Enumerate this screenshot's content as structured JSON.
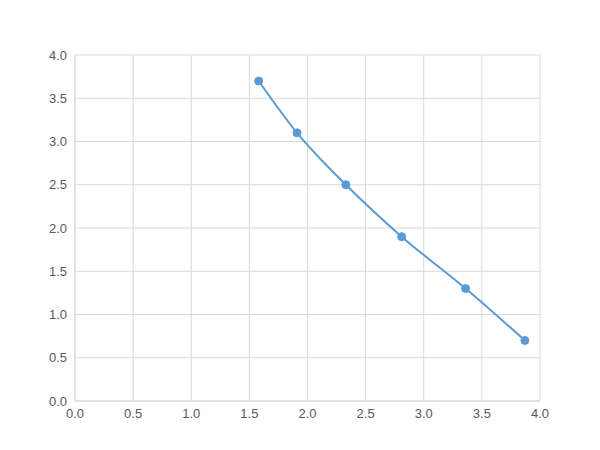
{
  "chart_data": {
    "type": "line",
    "x": [
      1.58,
      1.91,
      2.33,
      2.81,
      3.36,
      3.87
    ],
    "values": [
      3.7,
      3.1,
      2.5,
      1.9,
      1.3,
      0.7
    ],
    "color": "#5b9bd5",
    "marker": "circle",
    "line_style": "solid",
    "xlim": [
      0,
      4
    ],
    "ylim": [
      0,
      4
    ],
    "xticks": [
      {
        "value": 0,
        "label": "0.0"
      },
      0.5,
      {
        "value": 1,
        "label": "1.0"
      },
      1.5,
      {
        "value": 2,
        "label": "2.0"
      },
      2.5,
      {
        "value": 3,
        "label": "3.0"
      },
      3.5,
      {
        "value": 4,
        "label": "4.0"
      }
    ],
    "yticks": [
      {
        "value": 0,
        "label": "0.0"
      },
      0.5,
      {
        "value": 1,
        "label": "1.0"
      },
      1.5,
      {
        "value": 2,
        "label": "2.0"
      },
      2.5,
      {
        "value": 3,
        "label": "3.0"
      },
      3.5,
      {
        "value": 4,
        "label": "4.0"
      }
    ],
    "grid": true
  }
}
